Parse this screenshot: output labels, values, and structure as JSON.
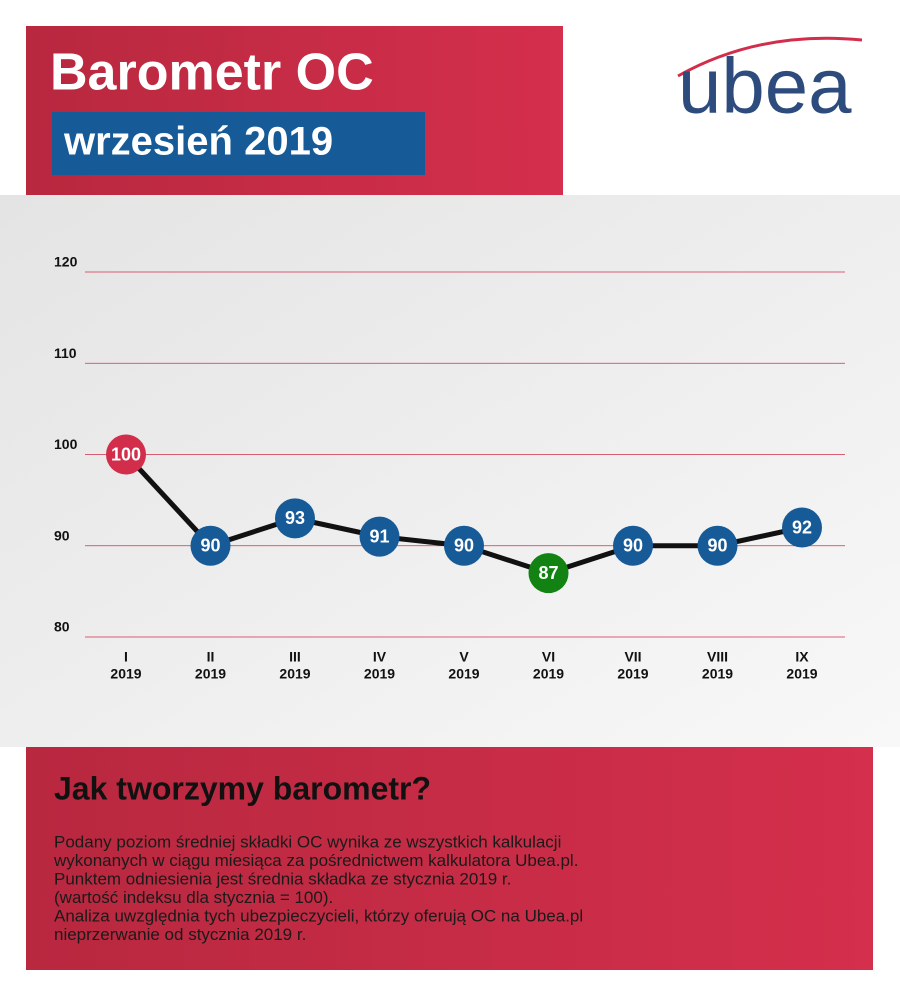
{
  "header": {
    "title": "Barometr OC",
    "subtitle": "wrzesień 2019",
    "logo": "ubea"
  },
  "chart_data": {
    "type": "line",
    "categories": [
      "I",
      "II",
      "III",
      "IV",
      "V",
      "VI",
      "VII",
      "VIII",
      "IX"
    ],
    "category_years": [
      "2019",
      "2019",
      "2019",
      "2019",
      "2019",
      "2019",
      "2019",
      "2019",
      "2019"
    ],
    "values": [
      100,
      90,
      93,
      91,
      90,
      87,
      90,
      90,
      92
    ],
    "point_colors": [
      "#d22e4b",
      "#165a98",
      "#165a98",
      "#165a98",
      "#165a98",
      "#128312",
      "#165a98",
      "#165a98",
      "#165a98"
    ],
    "line_color": "#111111",
    "ylim": [
      80,
      120
    ],
    "yticks": [
      80,
      90,
      100,
      110,
      120
    ],
    "grid": true,
    "grid_color": "#d22e4b"
  },
  "info": {
    "heading": "Jak tworzymy barometr?",
    "lines": [
      "Podany poziom średniej składki OC wynika ze wszystkich kalkulacji",
      "wykonanych w ciągu miesiąca za pośrednictwem kalkulatora Ubea.pl.",
      "Punktem odniesienia jest średnia składka ze stycznia 2019 r.",
      "(wartość indeksu dla stycznia = 100).",
      "Analiza uwzględnia tych ubezpieczycieli, którzy oferują OC na Ubea.pl",
      "nieprzerwanie od stycznia 2019 r."
    ]
  }
}
